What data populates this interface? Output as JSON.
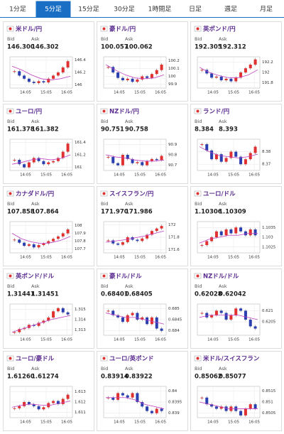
{
  "tabs": [
    "1分足",
    "5分足",
    "15分足",
    "30分足",
    "1時間足",
    "日足",
    "週足",
    "月足"
  ],
  "active_tab": 1,
  "labels": {
    "bid": "Bid",
    "ask": "Ask"
  },
  "xticks": [
    "14:05",
    "15:05",
    "16:05"
  ],
  "panels": [
    {
      "name": "米ドル/円",
      "bid": "146.300",
      "ask": "146.302",
      "ylim": [
        145.95,
        146.45
      ],
      "yticks": [
        146.4,
        146.2,
        146
      ],
      "values": [
        146.22,
        146.15,
        146.1,
        146.05,
        146.03,
        146.06,
        146.04,
        146.1,
        146.15,
        146.2,
        146.28,
        146.38
      ],
      "ma": [
        146.3,
        146.24,
        146.16,
        146.1,
        146.08,
        146.1,
        146.14
      ]
    },
    {
      "name": "豪ドル/円",
      "bid": "100.057",
      "ask": "100.062",
      "ylim": [
        99.85,
        100.25
      ],
      "yticks": [
        100.2,
        100.1,
        100,
        99.9
      ],
      "values": [
        100.12,
        100.05,
        99.98,
        99.95,
        99.97,
        99.93,
        99.96,
        100.0,
        99.98,
        100.03,
        100.08,
        100.15
      ],
      "ma": [
        100.15,
        100.08,
        100.02,
        99.98,
        99.97,
        99.98,
        100.02
      ]
    },
    {
      "name": "英ポンド/円",
      "bid": "192.305",
      "ask": "192.312",
      "ylim": [
        191.7,
        192.3
      ],
      "yticks": [
        192.2,
        192,
        191.8
      ],
      "values": [
        192.05,
        191.98,
        191.9,
        191.92,
        191.85,
        191.88,
        191.83,
        191.9,
        192.0,
        192.08,
        192.15,
        192.25
      ],
      "ma": [
        192.1,
        192.0,
        191.94,
        191.9,
        191.9,
        191.95,
        192.05
      ]
    },
    {
      "name": "ユーロ/円",
      "bid": "161.378",
      "ask": "161.382",
      "ylim": [
        160.95,
        161.45
      ],
      "yticks": [
        161.4,
        161.2,
        161
      ],
      "values": [
        161.12,
        161.05,
        161.0,
        161.08,
        161.15,
        161.1,
        161.05,
        161.08,
        161.1,
        161.15,
        161.25,
        161.38
      ],
      "ma": [
        161.05,
        161.08,
        161.12,
        161.14,
        161.12,
        161.14,
        161.2
      ]
    },
    {
      "name": "NZドル/円",
      "bid": "90.751",
      "ask": "90.758",
      "ylim": [
        90.65,
        90.95
      ],
      "yticks": [
        90.9,
        90.8,
        90.7
      ],
      "values": [
        90.78,
        90.72,
        90.7,
        90.8,
        90.76,
        90.72,
        90.73,
        90.7,
        90.74,
        90.76,
        90.75,
        90.79
      ],
      "ma": [
        90.8,
        90.78,
        90.77,
        90.75,
        90.74,
        90.74,
        90.75
      ]
    },
    {
      "name": "ランド/円",
      "bid": "8.384",
      "ask": "8.393",
      "ylim": [
        8.365,
        8.39
      ],
      "yticks": [
        8.38,
        8.37
      ],
      "values": [
        8.386,
        8.381,
        8.374,
        8.378,
        8.372,
        8.375,
        8.38,
        8.376,
        8.37,
        8.374,
        8.379,
        8.384
      ],
      "ma": [
        8.384,
        8.38,
        8.377,
        8.376,
        8.375,
        8.376,
        8.378
      ]
    },
    {
      "name": "カナダドル/円",
      "bid": "107.858",
      "ask": "107.864",
      "ylim": [
        107.65,
        108.05
      ],
      "yticks": [
        108,
        107.9,
        107.8,
        107.7
      ],
      "values": [
        107.82,
        107.78,
        107.74,
        107.76,
        107.72,
        107.75,
        107.77,
        107.8,
        107.83,
        107.86,
        107.9,
        107.95
      ],
      "ma": [
        107.9,
        107.83,
        107.79,
        107.77,
        107.78,
        107.81,
        107.86
      ]
    },
    {
      "name": "スイスフラン/円",
      "bid": "171.970",
      "ask": "171.986",
      "ylim": [
        171.55,
        172.05
      ],
      "yticks": [
        172,
        171.8,
        171.6
      ],
      "values": [
        171.75,
        171.7,
        171.68,
        171.72,
        171.8,
        171.76,
        171.74,
        171.78,
        171.84,
        171.9,
        171.94,
        171.98
      ],
      "ma": [
        171.72,
        171.74,
        171.76,
        171.79,
        171.82,
        171.86,
        171.9
      ]
    },
    {
      "name": "ユーロ/ドル",
      "bid": "1.10306",
      "ask": "1.10309",
      "ylim": [
        1.1022,
        1.1038
      ],
      "yticks": [
        1.1035,
        1.103,
        1.1025
      ],
      "values": [
        1.1026,
        1.1028,
        1.103,
        1.1033,
        1.1031,
        1.1034,
        1.1032,
        1.1035,
        1.1033,
        1.1031,
        1.1034,
        1.1031
      ],
      "ma": [
        1.1027,
        1.1029,
        1.103,
        1.1031,
        1.1031,
        1.1032,
        1.1032
      ]
    },
    {
      "name": "英ポンド/ドル",
      "bid": "1.31441",
      "ask": "1.31451",
      "ylim": [
        1.3125,
        1.3155
      ],
      "yticks": [
        1.315,
        1.314,
        1.313
      ],
      "values": [
        1.3128,
        1.3131,
        1.3132,
        1.3135,
        1.3134,
        1.3137,
        1.3139,
        1.3142,
        1.3148,
        1.3151,
        1.3147,
        1.3145
      ],
      "ma": [
        1.3128,
        1.3131,
        1.3134,
        1.3137,
        1.314,
        1.3142,
        1.3144
      ]
    },
    {
      "name": "豪ドル/ドル",
      "bid": "0.68401",
      "ask": "0.68405",
      "ylim": [
        0.6838,
        0.6852
      ],
      "yticks": [
        0.685,
        0.6845,
        0.684
      ],
      "values": [
        0.6849,
        0.6847,
        0.6846,
        0.6844,
        0.6847,
        0.6848,
        0.6845,
        0.6846,
        0.6843,
        0.6846,
        0.6841,
        0.684
      ],
      "ma": [
        0.6848,
        0.6847,
        0.6846,
        0.6846,
        0.6845,
        0.6844,
        0.6843
      ]
    },
    {
      "name": "NZドル/ドル",
      "bid": "0.62028",
      "ask": "0.62042",
      "ylim": [
        0.6199,
        0.6213
      ],
      "yticks": [
        0.621,
        0.6205
      ],
      "values": [
        0.6209,
        0.6207,
        0.6208,
        0.621,
        0.6209,
        0.6206,
        0.6208,
        0.6211,
        0.621,
        0.6206,
        0.6203,
        0.6202
      ],
      "ma": [
        0.6207,
        0.6208,
        0.6208,
        0.6208,
        0.6208,
        0.6207,
        0.6206
      ]
    },
    {
      "name": "ユーロ/豪ドル",
      "bid": "1.61260",
      "ask": "1.61274",
      "ylim": [
        1.6105,
        1.6135
      ],
      "yticks": [
        1.613,
        1.612,
        1.611
      ],
      "values": [
        1.6114,
        1.6116,
        1.612,
        1.6118,
        1.6116,
        1.6113,
        1.6115,
        1.6119,
        1.6121,
        1.6118,
        1.6123,
        1.6127
      ],
      "ma": [
        1.6115,
        1.6117,
        1.6118,
        1.6117,
        1.6117,
        1.6119,
        1.6121
      ]
    },
    {
      "name": "ユーロ/英ポンド",
      "bid": "0.83914",
      "ask": "0.83922",
      "ylim": [
        0.8388,
        0.8402
      ],
      "yticks": [
        0.84,
        0.8395,
        0.839
      ],
      "values": [
        0.8397,
        0.8396,
        0.8399,
        0.8398,
        0.8397,
        0.8399,
        0.8395,
        0.8393,
        0.8391,
        0.839,
        0.8392,
        0.8391
      ],
      "ma": [
        0.8397,
        0.8397,
        0.8397,
        0.8396,
        0.8394,
        0.8393,
        0.8392
      ]
    },
    {
      "name": "米ドル/スイスフラン",
      "bid": "0.85062",
      "ask": "0.85077",
      "ylim": [
        0.8503,
        0.8517
      ],
      "yticks": [
        0.8515,
        0.851,
        0.8505
      ],
      "values": [
        0.8512,
        0.8509,
        0.8508,
        0.8507,
        0.8508,
        0.8506,
        0.8508,
        0.8506,
        0.8504,
        0.8507,
        0.8509,
        0.8507
      ],
      "ma": [
        0.851,
        0.8509,
        0.8508,
        0.8507,
        0.8507,
        0.8507,
        0.8507
      ]
    }
  ]
}
